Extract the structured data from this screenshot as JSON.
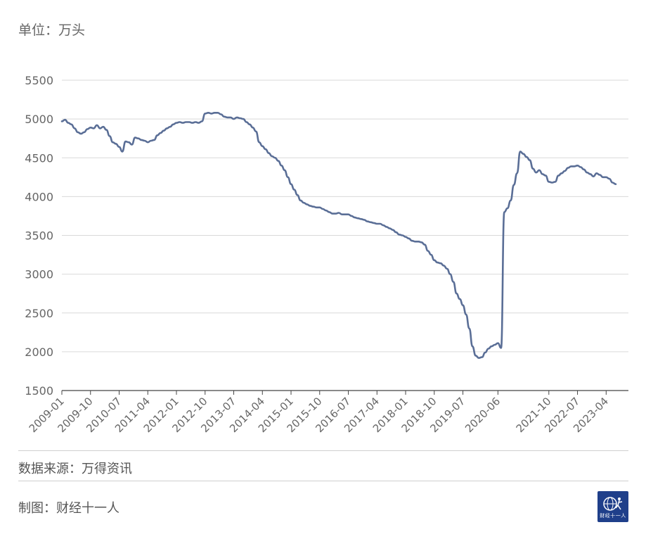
{
  "unit_label": "单位：万头",
  "source_label": "数据来源：万得资讯",
  "maker_label": "制图：财经十一人",
  "logo_text": "财经十一人",
  "colors": {
    "line": "#5a6e96",
    "grid": "#d9d9d9",
    "axis": "#444444",
    "text": "#666666"
  },
  "chart_data": {
    "type": "line",
    "title": "",
    "xlabel": "",
    "ylabel": "",
    "ylim": [
      1500,
      5500
    ],
    "yticks": [
      1500,
      2000,
      2500,
      3000,
      3500,
      4000,
      4500,
      5000,
      5500
    ],
    "xlim": [
      "2009-01",
      "2023-11"
    ],
    "xtick_labels": [
      "2009-01",
      "2009-10",
      "2010-07",
      "2011-04",
      "2012-01",
      "2012-10",
      "2013-07",
      "2014-04",
      "2015-01",
      "2015-10",
      "2016-07",
      "2017-04",
      "2018-01",
      "2018-10",
      "2019-07",
      "2020-06",
      "2021-10",
      "2022-07",
      "2023-04"
    ],
    "grid": true,
    "legend": "none",
    "series": [
      {
        "points": [
          [
            "2009-01",
            4970
          ],
          [
            "2009-02",
            4990
          ],
          [
            "2009-03",
            4950
          ],
          [
            "2009-04",
            4930
          ],
          [
            "2009-05",
            4880
          ],
          [
            "2009-06",
            4830
          ],
          [
            "2009-07",
            4810
          ],
          [
            "2009-08",
            4830
          ],
          [
            "2009-09",
            4870
          ],
          [
            "2009-10",
            4890
          ],
          [
            "2009-11",
            4880
          ],
          [
            "2009-12",
            4920
          ],
          [
            "2010-01",
            4880
          ],
          [
            "2010-02",
            4900
          ],
          [
            "2010-03",
            4860
          ],
          [
            "2010-04",
            4780
          ],
          [
            "2010-05",
            4700
          ],
          [
            "2010-06",
            4680
          ],
          [
            "2010-07",
            4640
          ],
          [
            "2010-08",
            4580
          ],
          [
            "2010-09",
            4710
          ],
          [
            "2010-10",
            4700
          ],
          [
            "2010-11",
            4670
          ],
          [
            "2010-12",
            4760
          ],
          [
            "2011-01",
            4750
          ],
          [
            "2011-02",
            4730
          ],
          [
            "2011-03",
            4720
          ],
          [
            "2011-04",
            4700
          ],
          [
            "2011-05",
            4720
          ],
          [
            "2011-06",
            4730
          ],
          [
            "2011-07",
            4790
          ],
          [
            "2011-08",
            4820
          ],
          [
            "2011-09",
            4850
          ],
          [
            "2011-10",
            4880
          ],
          [
            "2011-11",
            4900
          ],
          [
            "2011-12",
            4930
          ],
          [
            "2012-01",
            4950
          ],
          [
            "2012-02",
            4960
          ],
          [
            "2012-03",
            4950
          ],
          [
            "2012-04",
            4960
          ],
          [
            "2012-05",
            4960
          ],
          [
            "2012-06",
            4950
          ],
          [
            "2012-07",
            4960
          ],
          [
            "2012-08",
            4950
          ],
          [
            "2012-09",
            4970
          ],
          [
            "2012-10",
            5070
          ],
          [
            "2012-11",
            5080
          ],
          [
            "2012-12",
            5070
          ],
          [
            "2013-01",
            5080
          ],
          [
            "2013-02",
            5080
          ],
          [
            "2013-03",
            5060
          ],
          [
            "2013-04",
            5030
          ],
          [
            "2013-05",
            5020
          ],
          [
            "2013-06",
            5020
          ],
          [
            "2013-07",
            5000
          ],
          [
            "2013-08",
            5020
          ],
          [
            "2013-09",
            5010
          ],
          [
            "2013-10",
            5000
          ],
          [
            "2013-11",
            4960
          ],
          [
            "2013-12",
            4930
          ],
          [
            "2014-01",
            4890
          ],
          [
            "2014-02",
            4840
          ],
          [
            "2014-03",
            4700
          ],
          [
            "2014-04",
            4650
          ],
          [
            "2014-05",
            4610
          ],
          [
            "2014-06",
            4560
          ],
          [
            "2014-07",
            4520
          ],
          [
            "2014-08",
            4500
          ],
          [
            "2014-09",
            4460
          ],
          [
            "2014-10",
            4400
          ],
          [
            "2014-11",
            4340
          ],
          [
            "2014-12",
            4250
          ],
          [
            "2015-01",
            4160
          ],
          [
            "2015-02",
            4090
          ],
          [
            "2015-03",
            4020
          ],
          [
            "2015-04",
            3950
          ],
          [
            "2015-05",
            3920
          ],
          [
            "2015-06",
            3900
          ],
          [
            "2015-07",
            3880
          ],
          [
            "2015-08",
            3870
          ],
          [
            "2015-09",
            3860
          ],
          [
            "2015-10",
            3860
          ],
          [
            "2015-11",
            3840
          ],
          [
            "2015-12",
            3820
          ],
          [
            "2016-01",
            3800
          ],
          [
            "2016-02",
            3780
          ],
          [
            "2016-03",
            3780
          ],
          [
            "2016-04",
            3790
          ],
          [
            "2016-05",
            3770
          ],
          [
            "2016-06",
            3770
          ],
          [
            "2016-07",
            3770
          ],
          [
            "2016-08",
            3750
          ],
          [
            "2016-09",
            3730
          ],
          [
            "2016-10",
            3720
          ],
          [
            "2016-11",
            3710
          ],
          [
            "2016-12",
            3700
          ],
          [
            "2017-01",
            3680
          ],
          [
            "2017-02",
            3670
          ],
          [
            "2017-03",
            3660
          ],
          [
            "2017-04",
            3650
          ],
          [
            "2017-05",
            3650
          ],
          [
            "2017-06",
            3630
          ],
          [
            "2017-07",
            3610
          ],
          [
            "2017-08",
            3590
          ],
          [
            "2017-09",
            3570
          ],
          [
            "2017-10",
            3540
          ],
          [
            "2017-11",
            3510
          ],
          [
            "2017-12",
            3500
          ],
          [
            "2018-01",
            3480
          ],
          [
            "2018-02",
            3460
          ],
          [
            "2018-03",
            3430
          ],
          [
            "2018-04",
            3420
          ],
          [
            "2018-05",
            3420
          ],
          [
            "2018-06",
            3410
          ],
          [
            "2018-07",
            3380
          ],
          [
            "2018-08",
            3300
          ],
          [
            "2018-09",
            3250
          ],
          [
            "2018-10",
            3180
          ],
          [
            "2018-11",
            3150
          ],
          [
            "2018-12",
            3140
          ],
          [
            "2019-01",
            3110
          ],
          [
            "2019-02",
            3070
          ],
          [
            "2019-03",
            3000
          ],
          [
            "2019-04",
            2900
          ],
          [
            "2019-05",
            2750
          ],
          [
            "2019-06",
            2680
          ],
          [
            "2019-07",
            2600
          ],
          [
            "2019-08",
            2480
          ],
          [
            "2019-09",
            2300
          ],
          [
            "2019-10",
            2070
          ],
          [
            "2019-11",
            1950
          ],
          [
            "2019-12",
            1920
          ],
          [
            "2020-01",
            1930
          ],
          [
            "2020-02",
            1990
          ],
          [
            "2020-03",
            2040
          ],
          [
            "2020-04",
            2070
          ],
          [
            "2020-05",
            2090
          ],
          [
            "2020-06",
            2110
          ],
          [
            "2020-07",
            2050
          ],
          [
            "2020-08",
            3800
          ],
          [
            "2020-09",
            3850
          ],
          [
            "2020-10",
            3950
          ],
          [
            "2020-11",
            4150
          ],
          [
            "2020-12",
            4300
          ],
          [
            "2021-01",
            4580
          ],
          [
            "2021-02",
            4550
          ],
          [
            "2021-03",
            4510
          ],
          [
            "2021-04",
            4470
          ],
          [
            "2021-05",
            4360
          ],
          [
            "2021-06",
            4310
          ],
          [
            "2021-07",
            4340
          ],
          [
            "2021-08",
            4290
          ],
          [
            "2021-09",
            4270
          ],
          [
            "2021-10",
            4190
          ],
          [
            "2021-11",
            4180
          ],
          [
            "2021-12",
            4190
          ],
          [
            "2022-01",
            4270
          ],
          [
            "2022-02",
            4300
          ],
          [
            "2022-03",
            4330
          ],
          [
            "2022-04",
            4370
          ],
          [
            "2022-05",
            4390
          ],
          [
            "2022-06",
            4390
          ],
          [
            "2022-07",
            4400
          ],
          [
            "2022-08",
            4380
          ],
          [
            "2022-09",
            4350
          ],
          [
            "2022-10",
            4310
          ],
          [
            "2022-11",
            4290
          ],
          [
            "2022-12",
            4260
          ],
          [
            "2023-01",
            4300
          ],
          [
            "2023-02",
            4280
          ],
          [
            "2023-03",
            4250
          ],
          [
            "2023-04",
            4250
          ],
          [
            "2023-05",
            4230
          ],
          [
            "2023-06",
            4180
          ],
          [
            "2023-07",
            4160
          ]
        ]
      }
    ]
  }
}
